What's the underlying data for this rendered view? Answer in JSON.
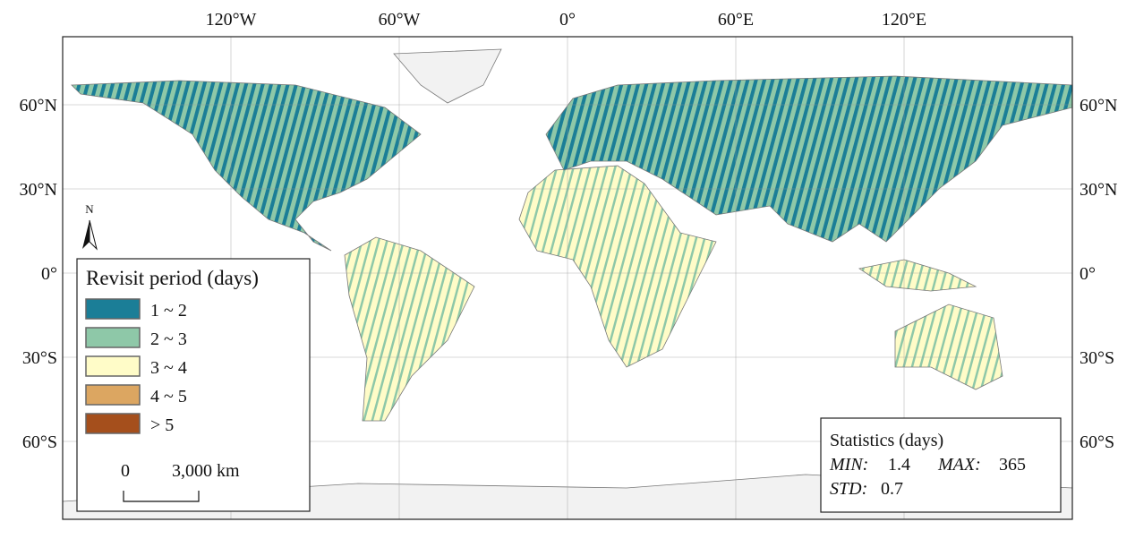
{
  "map": {
    "lon_ticks": [
      {
        "value": -120,
        "label": "120°W"
      },
      {
        "value": -60,
        "label": "60°W"
      },
      {
        "value": 0,
        "label": "0°"
      },
      {
        "value": 60,
        "label": "60°E"
      },
      {
        "value": 120,
        "label": "120°E"
      }
    ],
    "lat_ticks": [
      {
        "value": 60,
        "label": "60°N"
      },
      {
        "value": 30,
        "label": "30°N"
      },
      {
        "value": 0,
        "label": "0°"
      },
      {
        "value": -30,
        "label": "30°S"
      },
      {
        "value": -60,
        "label": "60°S"
      }
    ],
    "north_label": "N",
    "legend": {
      "title": "Revisit period (days)",
      "items": [
        {
          "label": "1 ~ 2",
          "color": "#1b7e97"
        },
        {
          "label": "2 ~ 3",
          "color": "#8ec8a8"
        },
        {
          "label": "3 ~ 4",
          "color": "#fffcc8"
        },
        {
          "label": "4 ~ 5",
          "color": "#dca661"
        },
        {
          "label": "> 5",
          "color": "#a54f1c"
        }
      ]
    },
    "scale_bar": {
      "start": "0",
      "end": "3,000 km"
    },
    "statistics": {
      "title": "Statistics (days)",
      "min": {
        "label": "MIN:",
        "value": 1.4
      },
      "max": {
        "label": "MAX:",
        "value": 365
      },
      "std": {
        "label": "STD:",
        "value": 0.7
      }
    }
  }
}
